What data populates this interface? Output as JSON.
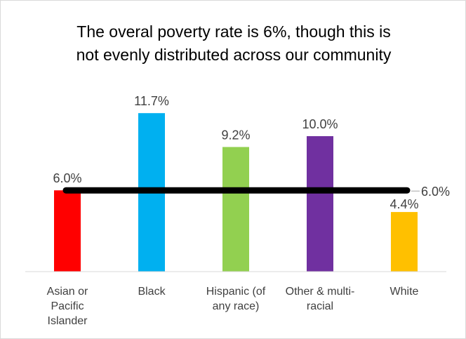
{
  "chart_data": {
    "type": "bar",
    "title": "The overal poverty rate is 6%, though this is not evenly distributed across our community",
    "title_lines": [
      "The overal poverty rate is 6%, though this is",
      "not evenly distributed across our community"
    ],
    "categories": [
      "Asian or Pacific Islander",
      "Black",
      "Hispanic (of any race)",
      "Other & multi-racial",
      "White"
    ],
    "category_lines": [
      [
        "Asian or",
        "Pacific",
        "Islander"
      ],
      [
        "Black"
      ],
      [
        "Hispanic (of",
        "any race)"
      ],
      [
        "Other & multi-",
        "racial"
      ],
      [
        "White"
      ]
    ],
    "values": [
      6.0,
      11.7,
      9.2,
      10.0,
      4.4
    ],
    "value_labels": [
      "6.0%",
      "11.7%",
      "9.2%",
      "10.0%",
      "4.4%"
    ],
    "bar_colors": [
      "#ff0000",
      "#00b0f0",
      "#92d050",
      "#7030a0",
      "#ffc000"
    ],
    "reference_line": {
      "value": 6.0,
      "label": "6.0%",
      "color": "#000000"
    },
    "xlabel": "",
    "ylabel": "",
    "ylim": [
      0,
      14
    ],
    "grid": false,
    "legend": "none"
  }
}
